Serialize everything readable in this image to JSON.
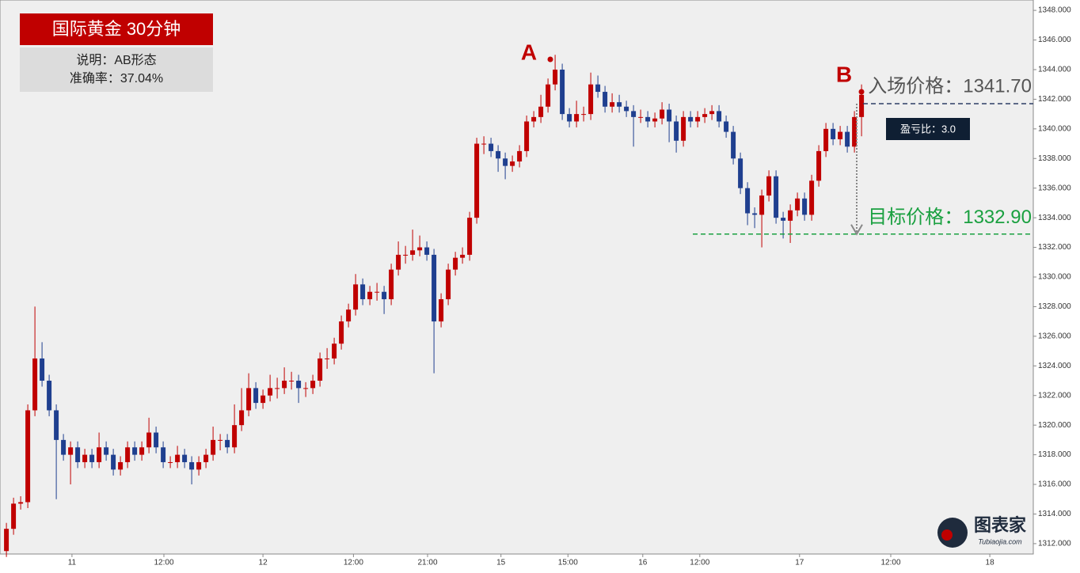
{
  "chart_data": {
    "type": "candlestick",
    "title": "国际黄金  30分钟",
    "description": "说明：AB形态",
    "accuracy": "准确率：37.04%",
    "point_labels": [
      "A",
      "B"
    ],
    "entry": {
      "label": "入场价格：1341.70",
      "value": 1341.7
    },
    "target": {
      "label": "目标价格：1332.90",
      "value": 1332.9
    },
    "risk_reward": "盈亏比：3.0",
    "watermark": {
      "name": "图表家",
      "url": "Tubiaojia.com"
    },
    "up_color": "#c00000",
    "down_color": "#1f3f8f",
    "ylim": [
      1311.3,
      1348.7
    ],
    "yticks": [
      {
        "value": 1312,
        "label": "1312.000"
      },
      {
        "value": 1314,
        "label": "1314.000"
      },
      {
        "value": 1316,
        "label": "1316.000"
      },
      {
        "value": 1318,
        "label": "1318.000"
      },
      {
        "value": 1320,
        "label": "1320.000"
      },
      {
        "value": 1322,
        "label": "1322.000"
      },
      {
        "value": 1324,
        "label": "1324.000"
      },
      {
        "value": 1326,
        "label": "1326.000"
      },
      {
        "value": 1328,
        "label": "1328.000"
      },
      {
        "value": 1330,
        "label": "1330.000"
      },
      {
        "value": 1332,
        "label": "1332.000"
      },
      {
        "value": 1334,
        "label": "1334.000"
      },
      {
        "value": 1336,
        "label": "1336.000"
      },
      {
        "value": 1338,
        "label": "1338.000"
      },
      {
        "value": 1340,
        "label": "1340.000"
      },
      {
        "value": 1342,
        "label": "1342.000"
      },
      {
        "value": 1344,
        "label": "1344.000"
      },
      {
        "value": 1346,
        "label": "1346.000"
      },
      {
        "value": 1348,
        "label": "1348.000"
      }
    ],
    "xlim": [
      -0.9,
      144.1
    ],
    "xticks": [
      {
        "value": 9.2,
        "label": "11"
      },
      {
        "value": 22.1,
        "label": "12:00"
      },
      {
        "value": 36,
        "label": "12"
      },
      {
        "value": 48.7,
        "label": "12:00"
      },
      {
        "value": 59.1,
        "label": "21:00"
      },
      {
        "value": 69.4,
        "label": "15"
      },
      {
        "value": 78.8,
        "label": "15:00"
      },
      {
        "value": 89.3,
        "label": "16"
      },
      {
        "value": 97.3,
        "label": "12:00"
      },
      {
        "value": 111.3,
        "label": "17"
      },
      {
        "value": 124.1,
        "label": "12:00"
      },
      {
        "value": 138,
        "label": "18"
      }
    ],
    "candles": [
      [
        1311.5,
        1313.4,
        1311.1,
        1313
      ],
      [
        1313,
        1315.1,
        1312.6,
        1314.7
      ],
      [
        1314.7,
        1315.2,
        1314.3,
        1314.8
      ],
      [
        1314.8,
        1321.4,
        1314.4,
        1321
      ],
      [
        1321,
        1328,
        1320.6,
        1324.5
      ],
      [
        1324.5,
        1325.6,
        1322.6,
        1323
      ],
      [
        1323,
        1323.4,
        1320.6,
        1321
      ],
      [
        1321,
        1321.4,
        1315,
        1319
      ],
      [
        1319,
        1319.4,
        1317.6,
        1318
      ],
      [
        1318,
        1318.9,
        1316,
        1318.5
      ],
      [
        1318.5,
        1318.9,
        1317.1,
        1317.5
      ],
      [
        1317.5,
        1318.4,
        1317.1,
        1318
      ],
      [
        1318,
        1318.4,
        1317.1,
        1317.5
      ],
      [
        1317.5,
        1319.5,
        1317.1,
        1318.5
      ],
      [
        1318.5,
        1318.9,
        1317.6,
        1318
      ],
      [
        1318,
        1318.4,
        1316.6,
        1317
      ],
      [
        1317,
        1317.9,
        1316.6,
        1317.5
      ],
      [
        1317.5,
        1318.9,
        1317.1,
        1318.5
      ],
      [
        1318.5,
        1318.9,
        1317.6,
        1318
      ],
      [
        1318,
        1318.9,
        1317.6,
        1318.5
      ],
      [
        1318.5,
        1320.5,
        1318.1,
        1319.5
      ],
      [
        1319.5,
        1319.9,
        1318.1,
        1318.5
      ],
      [
        1318.5,
        1318.9,
        1317.1,
        1317.5
      ],
      [
        1317.5,
        1317.9,
        1317.1,
        1317.5
      ],
      [
        1317.5,
        1318.6,
        1317.1,
        1318
      ],
      [
        1318,
        1318.4,
        1317.1,
        1317.5
      ],
      [
        1317.5,
        1317.9,
        1316,
        1317
      ],
      [
        1317,
        1317.9,
        1316.6,
        1317.5
      ],
      [
        1317.5,
        1318.4,
        1317.1,
        1318
      ],
      [
        1318,
        1319.9,
        1317.6,
        1319
      ],
      [
        1319,
        1319.4,
        1318.3,
        1319
      ],
      [
        1319,
        1319.4,
        1318.1,
        1318.5
      ],
      [
        1318.5,
        1321.4,
        1318.1,
        1320
      ],
      [
        1320,
        1322.5,
        1319.6,
        1321
      ],
      [
        1321,
        1323.5,
        1320.6,
        1322.5
      ],
      [
        1322.5,
        1322.9,
        1321.1,
        1321.5
      ],
      [
        1321.5,
        1322.4,
        1321.1,
        1322
      ],
      [
        1322,
        1323.4,
        1321.6,
        1322.5
      ],
      [
        1322.5,
        1323.2,
        1321.8,
        1322.5
      ],
      [
        1322.5,
        1323.9,
        1322.1,
        1323
      ],
      [
        1323,
        1323.6,
        1322.4,
        1323
      ],
      [
        1323,
        1323.4,
        1321.5,
        1322.5
      ],
      [
        1322.5,
        1322.9,
        1321.9,
        1322.5
      ],
      [
        1322.5,
        1323.4,
        1322.1,
        1323
      ],
      [
        1323,
        1324.9,
        1322.6,
        1324.5
      ],
      [
        1324.5,
        1325.2,
        1323.8,
        1324.5
      ],
      [
        1324.5,
        1325.9,
        1324.1,
        1325.5
      ],
      [
        1325.5,
        1327.4,
        1325.1,
        1327
      ],
      [
        1327,
        1328.2,
        1326.6,
        1327.8
      ],
      [
        1327.8,
        1330.2,
        1327.4,
        1329.5
      ],
      [
        1329.5,
        1329.9,
        1328.1,
        1328.5
      ],
      [
        1328.5,
        1329.4,
        1328.1,
        1329
      ],
      [
        1329,
        1329.6,
        1328.4,
        1329
      ],
      [
        1329,
        1329.4,
        1327.5,
        1328.5
      ],
      [
        1328.5,
        1330.9,
        1328.1,
        1330.5
      ],
      [
        1330.5,
        1332.4,
        1330.1,
        1331.5
      ],
      [
        1331.5,
        1332.1,
        1330.9,
        1331.5
      ],
      [
        1331.5,
        1333.2,
        1331.1,
        1331.8
      ],
      [
        1331.8,
        1332.8,
        1331.4,
        1332
      ],
      [
        1332,
        1332.4,
        1331.1,
        1331.5
      ],
      [
        1331.5,
        1331.9,
        1323.5,
        1327
      ],
      [
        1327,
        1328.9,
        1326.6,
        1328.5
      ],
      [
        1328.5,
        1330.9,
        1328.1,
        1330.5
      ],
      [
        1330.5,
        1331.7,
        1330.1,
        1331.3
      ],
      [
        1331.3,
        1332,
        1330.9,
        1331.5
      ],
      [
        1331.5,
        1334.4,
        1331.1,
        1334
      ],
      [
        1334,
        1339.4,
        1333.6,
        1339
      ],
      [
        1339,
        1339.5,
        1338.3,
        1339
      ],
      [
        1339,
        1339.4,
        1338.1,
        1338.5
      ],
      [
        1338.5,
        1338.9,
        1337.1,
        1338
      ],
      [
        1338,
        1338.4,
        1336.6,
        1337.5
      ],
      [
        1337.5,
        1338.2,
        1337.1,
        1337.8
      ],
      [
        1337.8,
        1338.9,
        1337.4,
        1338.5
      ],
      [
        1338.5,
        1340.9,
        1338.1,
        1340.5
      ],
      [
        1340.5,
        1341.2,
        1340.1,
        1340.8
      ],
      [
        1340.8,
        1342.3,
        1340.4,
        1341.5
      ],
      [
        1341.5,
        1343.4,
        1341.1,
        1343
      ],
      [
        1343,
        1345,
        1342.6,
        1344
      ],
      [
        1344,
        1344.4,
        1340.6,
        1341
      ],
      [
        1341,
        1341.4,
        1340.1,
        1340.5
      ],
      [
        1340.5,
        1341.9,
        1340.1,
        1341
      ],
      [
        1341,
        1341.5,
        1340.5,
        1341
      ],
      [
        1341,
        1343.8,
        1340.6,
        1343
      ],
      [
        1343,
        1343.6,
        1342.1,
        1342.5
      ],
      [
        1342.5,
        1342.9,
        1341.1,
        1341.5
      ],
      [
        1341.5,
        1342.4,
        1341.1,
        1341.8
      ],
      [
        1341.8,
        1342.3,
        1341.1,
        1341.5
      ],
      [
        1341.5,
        1341.9,
        1340.8,
        1341.2
      ],
      [
        1341.2,
        1341.6,
        1338.8,
        1340.8
      ],
      [
        1340.8,
        1341.3,
        1340.4,
        1340.8
      ],
      [
        1340.8,
        1341.2,
        1340.1,
        1340.5
      ],
      [
        1340.5,
        1341.1,
        1340.1,
        1340.7
      ],
      [
        1340.7,
        1341.8,
        1340.3,
        1341.3
      ],
      [
        1341.3,
        1341.7,
        1339.1,
        1340.5
      ],
      [
        1340.5,
        1340.9,
        1338.4,
        1339.2
      ],
      [
        1339.2,
        1341.2,
        1338.8,
        1340.8
      ],
      [
        1340.8,
        1341.2,
        1340.1,
        1340.5
      ],
      [
        1340.5,
        1341.2,
        1340.1,
        1340.8
      ],
      [
        1340.8,
        1341.4,
        1340.4,
        1341
      ],
      [
        1341,
        1341.6,
        1340.6,
        1341.2
      ],
      [
        1341.2,
        1341.6,
        1340.1,
        1340.5
      ],
      [
        1340.5,
        1340.9,
        1339.4,
        1339.8
      ],
      [
        1339.8,
        1340.2,
        1337.6,
        1338
      ],
      [
        1338,
        1338.4,
        1335.6,
        1336
      ],
      [
        1336,
        1336.4,
        1333.5,
        1334.3
      ],
      [
        1334.3,
        1334.7,
        1333.3,
        1334.2
      ],
      [
        1334.2,
        1335.9,
        1332,
        1335.5
      ],
      [
        1335.5,
        1337.2,
        1335.1,
        1336.8
      ],
      [
        1336.8,
        1337.2,
        1333.6,
        1334
      ],
      [
        1334,
        1334.4,
        1332.6,
        1333.8
      ],
      [
        1333.8,
        1334.9,
        1332.3,
        1334.5
      ],
      [
        1334.5,
        1335.7,
        1334.1,
        1335.3
      ],
      [
        1335.3,
        1335.7,
        1333.8,
        1334.2
      ],
      [
        1334.2,
        1336.9,
        1333.8,
        1336.5
      ],
      [
        1336.5,
        1338.9,
        1336.1,
        1338.5
      ],
      [
        1338.5,
        1340.4,
        1338.1,
        1340
      ],
      [
        1340,
        1340.4,
        1338.9,
        1339.3
      ],
      [
        1339.3,
        1340.2,
        1338.9,
        1339.8
      ],
      [
        1339.8,
        1340.2,
        1338.4,
        1338.8
      ],
      [
        1338.8,
        1341.2,
        1338.4,
        1340.8
      ],
      [
        1340.8,
        1343,
        1339.5,
        1342.3
      ]
    ]
  }
}
